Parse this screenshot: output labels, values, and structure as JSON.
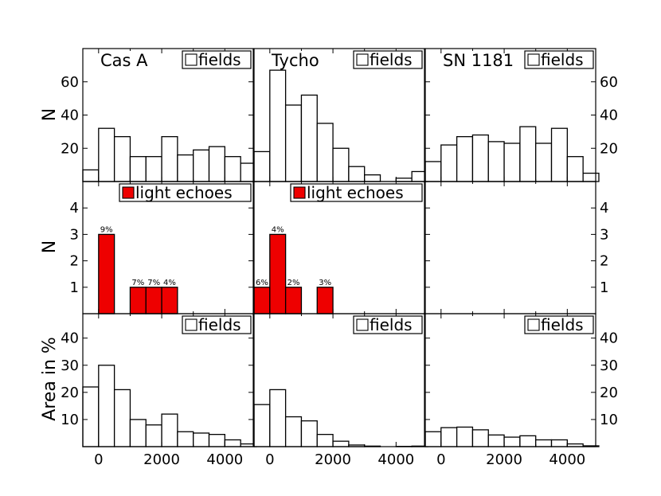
{
  "figure": {
    "columns": [
      "Cas A",
      "Tycho",
      "SN 1181"
    ],
    "x_tick_labels": [
      "0",
      "2000",
      "4000"
    ],
    "row_ylabels": [
      "N",
      "N",
      "Area in %"
    ],
    "legends": {
      "fields": "fields",
      "light_echoes": "light echoes"
    },
    "colors": {
      "fields_fill": "#ffffff",
      "echo_fill": "#ee0000",
      "edge": "#000000"
    }
  },
  "chart_data": [
    {
      "type": "bar",
      "row": 0,
      "col": 0,
      "title": "Cas A",
      "ylabel": "N",
      "legend": "fields",
      "legend_placement": "top-right",
      "bin_width": 500,
      "x": [
        -250,
        250,
        750,
        1250,
        1750,
        2250,
        2750,
        3250,
        3750,
        4250,
        4750
      ],
      "values": [
        7,
        32,
        27,
        15,
        15,
        27,
        16,
        19,
        21,
        15,
        11
      ],
      "xlim": [
        -500,
        4900
      ],
      "ylim": [
        0,
        80
      ],
      "yticks": [
        20,
        40,
        60
      ],
      "ytick_side": "left"
    },
    {
      "type": "bar",
      "row": 0,
      "col": 1,
      "title": "Tycho",
      "ylabel": "",
      "legend": "fields",
      "legend_placement": "top-right",
      "bin_width": 500,
      "x": [
        -250,
        250,
        750,
        1250,
        1750,
        2250,
        2750,
        3250,
        3750,
        4250,
        4750
      ],
      "values": [
        18,
        67,
        46,
        52,
        35,
        20,
        9,
        4,
        0,
        2,
        6
      ],
      "xlim": [
        -500,
        4900
      ],
      "ylim": [
        0,
        80
      ],
      "yticks": [],
      "ytick_side": "none"
    },
    {
      "type": "bar",
      "row": 0,
      "col": 2,
      "title": "SN 1181",
      "ylabel": "",
      "legend": "fields",
      "legend_placement": "top-right",
      "bin_width": 500,
      "x": [
        -250,
        250,
        750,
        1250,
        1750,
        2250,
        2750,
        3250,
        3750,
        4250,
        4750
      ],
      "values": [
        12,
        22,
        27,
        28,
        24,
        23,
        33,
        23,
        32,
        15,
        5
      ],
      "xlim": [
        -500,
        4900
      ],
      "ylim": [
        0,
        80
      ],
      "yticks": [
        20,
        40,
        60
      ],
      "ytick_side": "right"
    },
    {
      "type": "bar",
      "row": 1,
      "col": 0,
      "title": "",
      "ylabel": "N",
      "legend": "light echoes",
      "legend_placement": "top-right",
      "bin_width": 500,
      "x": [
        250,
        1250,
        1750,
        2250
      ],
      "values": [
        3,
        1,
        1,
        1
      ],
      "labels": [
        "9%",
        "7%",
        "7%",
        "4%"
      ],
      "xlim": [
        -500,
        4900
      ],
      "ylim": [
        0,
        5
      ],
      "yticks": [
        1,
        2,
        3,
        4
      ],
      "ytick_side": "left"
    },
    {
      "type": "bar",
      "row": 1,
      "col": 1,
      "title": "",
      "ylabel": "",
      "legend": "light echoes",
      "legend_placement": "top-right",
      "bin_width": 500,
      "x": [
        -250,
        250,
        750,
        1750
      ],
      "values": [
        1,
        3,
        1,
        1
      ],
      "labels": [
        "6%",
        "4%",
        "2%",
        "3%"
      ],
      "xlim": [
        -500,
        4900
      ],
      "ylim": [
        0,
        5
      ],
      "yticks": [],
      "ytick_side": "none"
    },
    {
      "type": "bar",
      "row": 1,
      "col": 2,
      "title": "",
      "ylabel": "",
      "legend": "",
      "legend_placement": "",
      "bin_width": 500,
      "x": [],
      "values": [],
      "labels": [],
      "xlim": [
        -500,
        4900
      ],
      "ylim": [
        0,
        5
      ],
      "yticks": [
        1,
        2,
        3,
        4
      ],
      "ytick_side": "right"
    },
    {
      "type": "bar",
      "row": 2,
      "col": 0,
      "title": "",
      "ylabel": "Area in %",
      "legend": "fields",
      "legend_placement": "top-right",
      "bin_width": 500,
      "x": [
        -250,
        250,
        750,
        1250,
        1750,
        2250,
        2750,
        3250,
        3750,
        4250,
        4750
      ],
      "values": [
        22,
        30,
        21,
        10,
        8,
        12,
        5.5,
        5,
        4.5,
        2.5,
        1
      ],
      "xlim": [
        -500,
        4900
      ],
      "ylim": [
        0,
        49
      ],
      "yticks": [
        10,
        20,
        30,
        40
      ],
      "ytick_side": "left",
      "xticks": [
        0,
        2000,
        4000
      ]
    },
    {
      "type": "bar",
      "row": 2,
      "col": 1,
      "title": "",
      "ylabel": "",
      "legend": "fields",
      "legend_placement": "top-right",
      "bin_width": 500,
      "x": [
        -250,
        250,
        750,
        1250,
        1750,
        2250,
        2750,
        3250,
        3750,
        4250,
        4750
      ],
      "values": [
        15.5,
        21,
        11,
        9.5,
        4.5,
        2,
        0.6,
        0.2,
        0,
        0.1,
        0.2
      ],
      "xlim": [
        -500,
        4900
      ],
      "ylim": [
        0,
        49
      ],
      "yticks": [],
      "ytick_side": "none",
      "xticks": [
        0,
        2000,
        4000
      ]
    },
    {
      "type": "bar",
      "row": 2,
      "col": 2,
      "title": "",
      "ylabel": "",
      "legend": "fields",
      "legend_placement": "top-right",
      "bin_width": 500,
      "x": [
        -250,
        250,
        750,
        1250,
        1750,
        2250,
        2750,
        3250,
        3750,
        4250,
        4750
      ],
      "values": [
        5.5,
        7,
        7.2,
        6.2,
        4.3,
        3.5,
        4,
        2.5,
        2.5,
        1,
        0.3
      ],
      "xlim": [
        -500,
        4900
      ],
      "ylim": [
        0,
        49
      ],
      "yticks": [
        10,
        20,
        30,
        40
      ],
      "ytick_side": "right",
      "xticks": [
        0,
        2000,
        4000
      ]
    }
  ]
}
